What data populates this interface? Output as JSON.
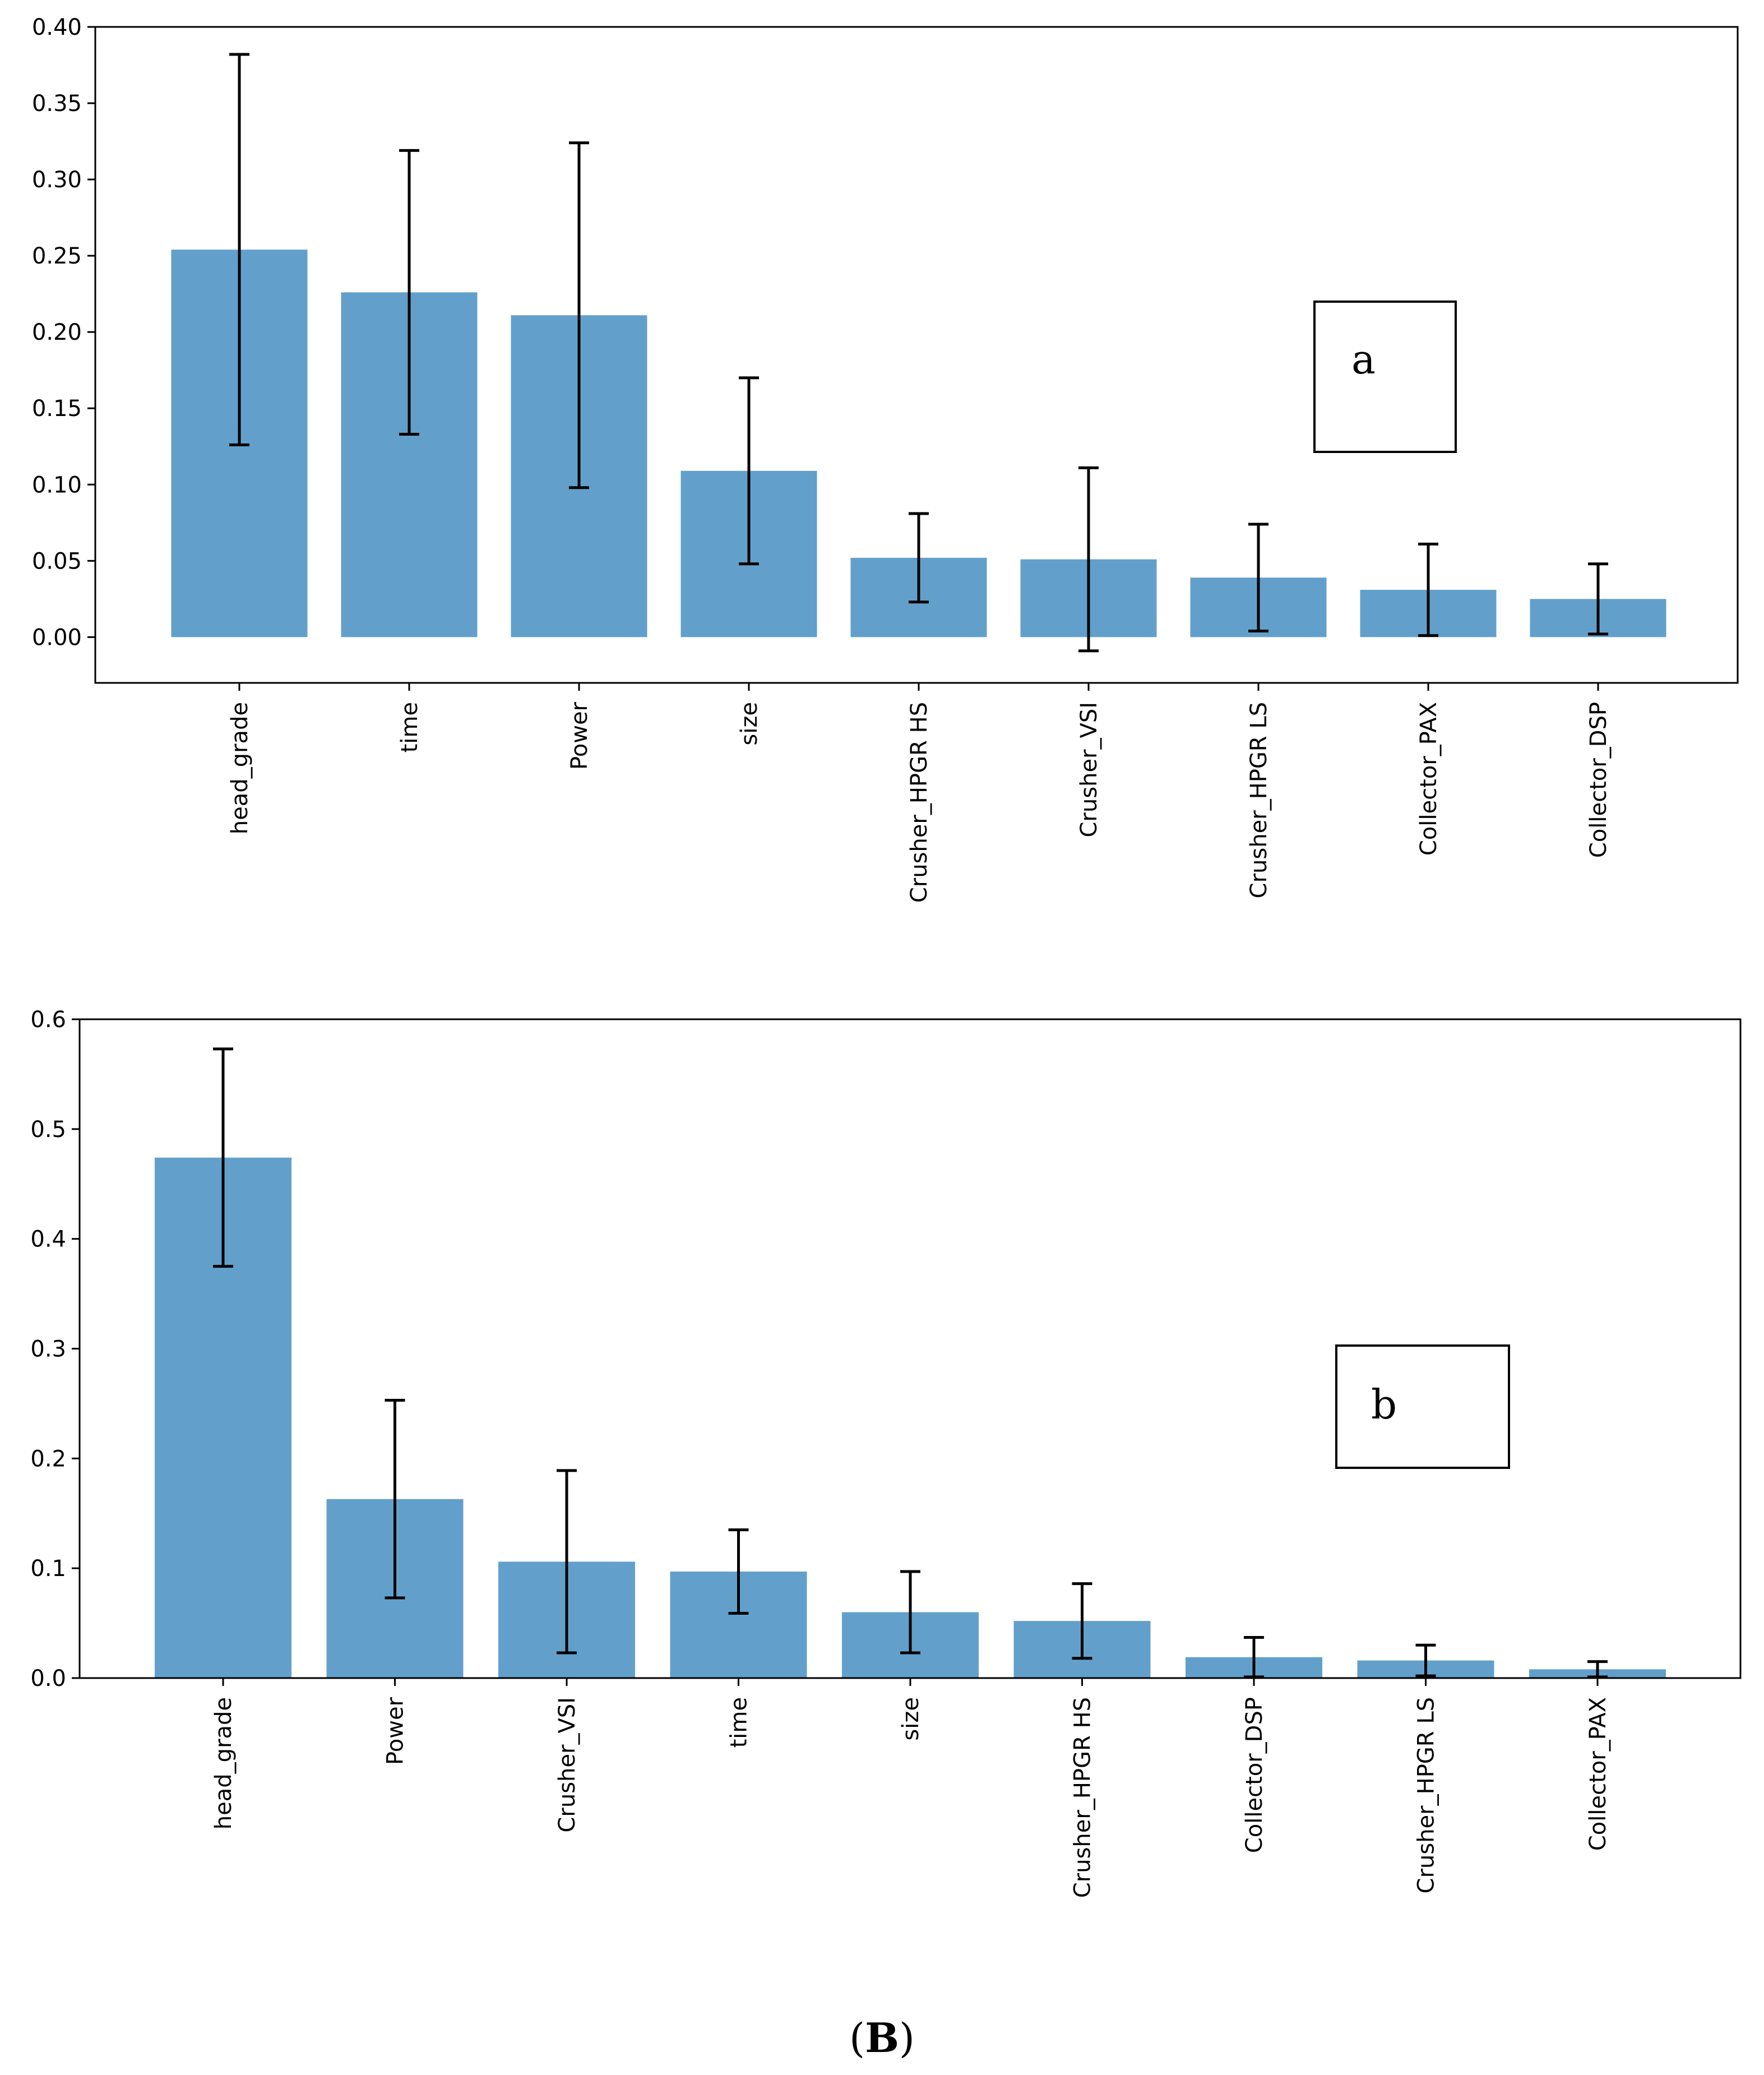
{
  "colors": {
    "bar": "#62a0cb",
    "error_bar": "#000000",
    "axis": "#000000"
  },
  "caption": {
    "open": "(",
    "letter": "B",
    "close": ")"
  },
  "chart_data": [
    {
      "type": "bar",
      "panel_label": "a",
      "ylim": [
        -0.03,
        0.4
      ],
      "yticks": [
        "0.00",
        "0.05",
        "0.10",
        "0.15",
        "0.20",
        "0.25",
        "0.30",
        "0.35",
        "0.40"
      ],
      "ytick_values": [
        0,
        0.05,
        0.1,
        0.15,
        0.2,
        0.25,
        0.3,
        0.35,
        0.4
      ],
      "categories": [
        "head_grade",
        "time",
        "Power",
        "size",
        "Crusher_HPGR HS",
        "Crusher_VSI",
        "Crusher_HPGR LS",
        "Collector_PAX",
        "Collector_DSP"
      ],
      "values": [
        0.254,
        0.226,
        0.211,
        0.109,
        0.052,
        0.051,
        0.039,
        0.031,
        0.025
      ],
      "errors": [
        0.128,
        0.093,
        0.113,
        0.061,
        0.029,
        0.06,
        0.035,
        0.03,
        0.023
      ],
      "xlabel": "",
      "ylabel": "",
      "grid": false
    },
    {
      "type": "bar",
      "panel_label": "b",
      "ylim": [
        0.0,
        0.6
      ],
      "yticks": [
        "0.0",
        "0.1",
        "0.2",
        "0.3",
        "0.4",
        "0.5",
        "0.6"
      ],
      "ytick_values": [
        0,
        0.1,
        0.2,
        0.3,
        0.4,
        0.5,
        0.6
      ],
      "categories": [
        "head_grade",
        "Power",
        "Crusher_VSI",
        "time",
        "size",
        "Crusher_HPGR HS",
        "Collector_DSP",
        "Crusher_HPGR LS",
        "Collector_PAX"
      ],
      "values": [
        0.474,
        0.163,
        0.106,
        0.097,
        0.06,
        0.052,
        0.019,
        0.016,
        0.008
      ],
      "errors": [
        0.099,
        0.09,
        0.083,
        0.038,
        0.037,
        0.034,
        0.018,
        0.014,
        0.007
      ],
      "xlabel": "",
      "ylabel": "",
      "grid": false
    }
  ]
}
